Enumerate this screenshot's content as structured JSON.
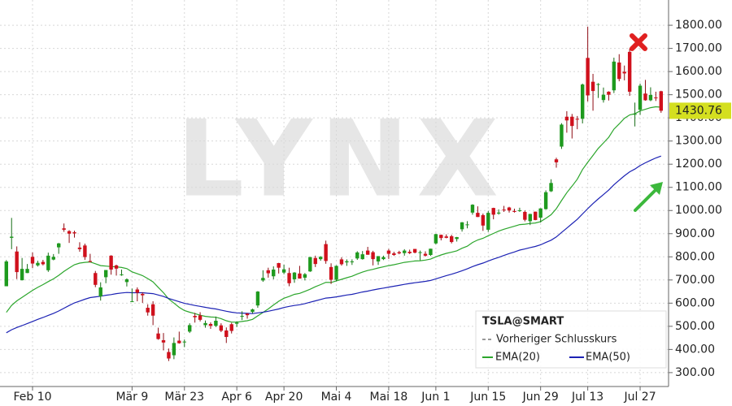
{
  "chart_data": {
    "type": "candlestick",
    "name": "TSLA@SMART",
    "watermark": "LYNX",
    "previous_close_label": "Vorheriger Schlusskurs",
    "up_color": "#1e9a1e",
    "down_color": "#d0101c",
    "grid": true,
    "legend_position": "bottom-right",
    "categories": [
      null,
      null,
      null,
      null,
      null,
      "Feb 10",
      null,
      null,
      null,
      null,
      null,
      null,
      null,
      null,
      null,
      null,
      null,
      null,
      null,
      null,
      null,
      null,
      null,
      null,
      "Mär 9",
      null,
      null,
      null,
      null,
      null,
      null,
      null,
      null,
      null,
      "Mär 23",
      null,
      null,
      null,
      null,
      null,
      null,
      null,
      null,
      null,
      "Apr 6",
      null,
      null,
      null,
      null,
      null,
      null,
      null,
      null,
      "Apr 20",
      null,
      null,
      null,
      null,
      null,
      null,
      null,
      null,
      null,
      "Mai 4",
      null,
      null,
      null,
      null,
      null,
      null,
      null,
      null,
      null,
      "Mai 18",
      null,
      null,
      null,
      null,
      null,
      null,
      null,
      null,
      "Jun 1",
      null,
      null,
      null,
      null,
      null,
      null,
      null,
      null,
      null,
      "Jun 15",
      null,
      null,
      null,
      null,
      null,
      null,
      null,
      null,
      null,
      "Jun 29",
      null,
      null,
      null,
      null,
      null,
      null,
      null,
      null,
      "Jul 13",
      null,
      null,
      null,
      null,
      null,
      null,
      null,
      null,
      null,
      "Jul 27",
      null,
      null,
      null,
      null
    ],
    "open": [
      673,
      882,
      823,
      699,
      730,
      800,
      763,
      778,
      742,
      788,
      841,
      923,
      911,
      906,
      840,
      849,
      782,
      730,
      629,
      712,
      805,
      763,
      724,
      691,
      605,
      659,
      640,
      580,
      595,
      469,
      440,
      389,
      375,
      438,
      433,
      477,
      545,
      547,
      505,
      510,
      502,
      504,
      482,
      509,
      511,
      545,
      555,
      562,
      590,
      698,
      742,
      716,
      773,
      732,
      730,
      703,
      728,
      710,
      737,
      795,
      790,
      855,
      756,
      701,
      789,
      776,
      778,
      793,
      790,
      827,
      820,
      780,
      790,
      827,
      815,
      820,
      816,
      822,
      834,
      820,
      813,
      808,
      858,
      895,
      888,
      889,
      877,
      919,
      940,
      991,
      990,
      980,
      917,
      1011,
      987,
      1004,
      1013,
      998,
      999,
      994,
      954,
      995,
      969,
      1006,
      1083,
      1221,
      1276,
      1405,
      1405,
      1396,
      1396,
      1659,
      1556,
      1543,
      1477,
      1513,
      1519,
      1639,
      1599,
      1685,
      1416,
      1435,
      1505,
      1476,
      1488,
      1515
    ],
    "high": [
      786,
      968,
      845,
      795,
      769,
      819,
      783,
      787,
      818,
      812,
      860,
      944,
      915,
      913,
      863,
      857,
      813,
      739,
      690,
      743,
      807,
      766,
      745,
      707,
      663,
      668,
      647,
      595,
      608,
      494,
      471,
      404,
      452,
      477,
      443,
      513,
      558,
      561,
      525,
      517,
      542,
      513,
      495,
      515,
      521,
      565,
      557,
      576,
      652,
      742,
      753,
      759,
      774,
      766,
      753,
      734,
      761,
      730,
      799,
      805,
      803,
      870,
      772,
      763,
      798,
      789,
      789,
      824,
      825,
      843,
      826,
      803,
      805,
      834,
      822,
      826,
      833,
      831,
      834,
      827,
      824,
      835,
      899,
      896,
      897,
      895,
      886,
      950,
      954,
      1027,
      1018,
      987,
      998,
      1012,
      1005,
      1020,
      1016,
      1008,
      1012,
      1000,
      986,
      995,
      1010,
      1087,
      1135,
      1228,
      1377,
      1429,
      1417,
      1408,
      1548,
      1794,
      1590,
      1550,
      1531,
      1515,
      1660,
      1675,
      1626,
      1700,
      1466,
      1548,
      1564,
      1532,
      1513,
      1517
    ],
    "low": [
      673,
      833,
      704,
      698,
      730,
      752,
      758,
      763,
      735,
      785,
      813,
      908,
      860,
      883,
      822,
      787,
      776,
      669,
      611,
      686,
      723,
      719,
      718,
      672,
      605,
      608,
      601,
      546,
      505,
      442,
      396,
      350,
      358,
      425,
      410,
      471,
      516,
      521,
      494,
      489,
      497,
      475,
      428,
      469,
      497,
      527,
      533,
      555,
      580,
      692,
      710,
      703,
      728,
      725,
      673,
      688,
      706,
      698,
      735,
      756,
      783,
      770,
      683,
      694,
      762,
      761,
      765,
      787,
      788,
      809,
      763,
      765,
      786,
      791,
      804,
      811,
      805,
      812,
      815,
      785,
      801,
      804,
      854,
      871,
      880,
      858,
      866,
      909,
      923,
      982,
      972,
      912,
      908,
      962,
      982,
      994,
      991,
      991,
      994,
      953,
      937,
      958,
      948,
      1004,
      1080,
      1185,
      1266,
      1336,
      1311,
      1351,
      1376,
      1471,
      1431,
      1486,
      1466,
      1475,
      1507,
      1558,
      1562,
      1495,
      1363,
      1413,
      1474,
      1472,
      1473,
      1422
    ],
    "close": [
      780,
      887,
      734,
      748,
      748,
      771,
      774,
      768,
      805,
      800,
      858,
      917,
      900,
      901,
      833,
      799,
      778,
      679,
      668,
      743,
      745,
      749,
      724,
      703,
      608,
      645,
      634,
      560,
      546,
      445,
      430,
      361,
      428,
      427,
      434,
      505,
      539,
      528,
      514,
      502,
      524,
      481,
      454,
      480,
      516,
      545,
      548,
      573,
      650,
      709,
      729,
      745,
      753,
      746,
      686,
      732,
      706,
      725,
      799,
      769,
      800,
      782,
      701,
      761,
      768,
      781,
      780,
      819,
      811,
      809,
      790,
      803,
      799,
      813,
      808,
      815,
      827,
      816,
      818,
      820,
      805,
      835,
      898,
      881,
      882,
      864,
      885,
      949,
      940,
      1025,
      972,
      935,
      990,
      982,
      991,
      1003,
      1000,
      994,
      1001,
      960,
      985,
      959,
      1009,
      1079,
      1119,
      1208,
      1371,
      1389,
      1365,
      1394,
      1544,
      1497,
      1516,
      1546,
      1500,
      1500,
      1643,
      1568,
      1592,
      1513,
      1417,
      1539,
      1476,
      1499,
      1487,
      1430.76
    ],
    "series": [
      {
        "name": "EMA(20)",
        "color": "#2ca62c",
        "values": [
          560,
          590,
          610,
          625,
          640,
          655,
          668,
          680,
          693,
          705,
          720,
          737,
          752,
          766,
          773,
          776,
          778,
          770,
          762,
          760,
          758,
          757,
          754,
          749,
          735,
          727,
          719,
          706,
          692,
          668,
          645,
          618,
          600,
          582,
          568,
          561,
          555,
          548,
          543,
          540,
          539,
          533,
          524,
          518,
          518,
          521,
          524,
          530,
          545,
          560,
          575,
          592,
          608,
          621,
          629,
          638,
          642,
          651,
          660,
          671,
          680,
          690,
          689,
          696,
          703,
          710,
          716,
          726,
          734,
          741,
          746,
          752,
          757,
          762,
          766,
          771,
          776,
          779,
          782,
          783,
          786,
          790,
          800,
          808,
          815,
          820,
          826,
          837,
          846,
          862,
          873,
          880,
          891,
          901,
          911,
          919,
          926,
          932,
          939,
          941,
          944,
          946,
          952,
          966,
          982,
          1008,
          1043,
          1077,
          1105,
          1135,
          1177,
          1208,
          1238,
          1268,
          1292,
          1316,
          1351,
          1374,
          1398,
          1413,
          1418,
          1430,
          1437,
          1444,
          1448,
          1446
        ]
      },
      {
        "name": "EMA(50)",
        "color": "#1c22b4",
        "values": [
          472,
          485,
          495,
          503,
          512,
          521,
          530,
          538,
          547,
          556,
          566,
          578,
          590,
          601,
          609,
          617,
          624,
          627,
          630,
          634,
          637,
          641,
          644,
          646,
          645,
          645,
          645,
          643,
          641,
          635,
          629,
          620,
          613,
          606,
          599,
          595,
          590,
          586,
          582,
          578,
          575,
          570,
          565,
          561,
          558,
          557,
          556,
          555,
          558,
          561,
          565,
          570,
          575,
          581,
          586,
          590,
          593,
          598,
          604,
          610,
          616,
          622,
          624,
          627,
          631,
          635,
          638,
          643,
          648,
          652,
          657,
          661,
          665,
          669,
          673,
          677,
          681,
          685,
          688,
          691,
          694,
          698,
          705,
          712,
          719,
          725,
          732,
          740,
          748,
          758,
          766,
          773,
          782,
          790,
          798,
          806,
          814,
          821,
          829,
          834,
          840,
          845,
          852,
          862,
          872,
          886,
          905,
          924,
          943,
          962,
          985,
          1008,
          1030,
          1050,
          1069,
          1088,
          1111,
          1131,
          1150,
          1167,
          1179,
          1194,
          1206,
          1217,
          1227,
          1235
        ]
      }
    ],
    "ylim": [
      240,
      1909
    ],
    "yticks": [
      {
        "value": 300,
        "label": "300.00"
      },
      {
        "value": 400,
        "label": "400.00"
      },
      {
        "value": 500,
        "label": "500.00"
      },
      {
        "value": 600,
        "label": "600.00"
      },
      {
        "value": 700,
        "label": "700.00"
      },
      {
        "value": 800,
        "label": "800.00"
      },
      {
        "value": 900,
        "label": "900.00"
      },
      {
        "value": 1000,
        "label": "1000.00"
      },
      {
        "value": 1100,
        "label": "1100.00"
      },
      {
        "value": 1200,
        "label": "1200.00"
      },
      {
        "value": 1300,
        "label": "1300.00"
      },
      {
        "value": 1400,
        "label": "1400.00"
      },
      {
        "value": 1500,
        "label": "1500.00"
      },
      {
        "value": 1600,
        "label": "1600.00"
      },
      {
        "value": 1700,
        "label": "1700.00"
      },
      {
        "value": 1800,
        "label": "1800.00"
      }
    ]
  }
}
